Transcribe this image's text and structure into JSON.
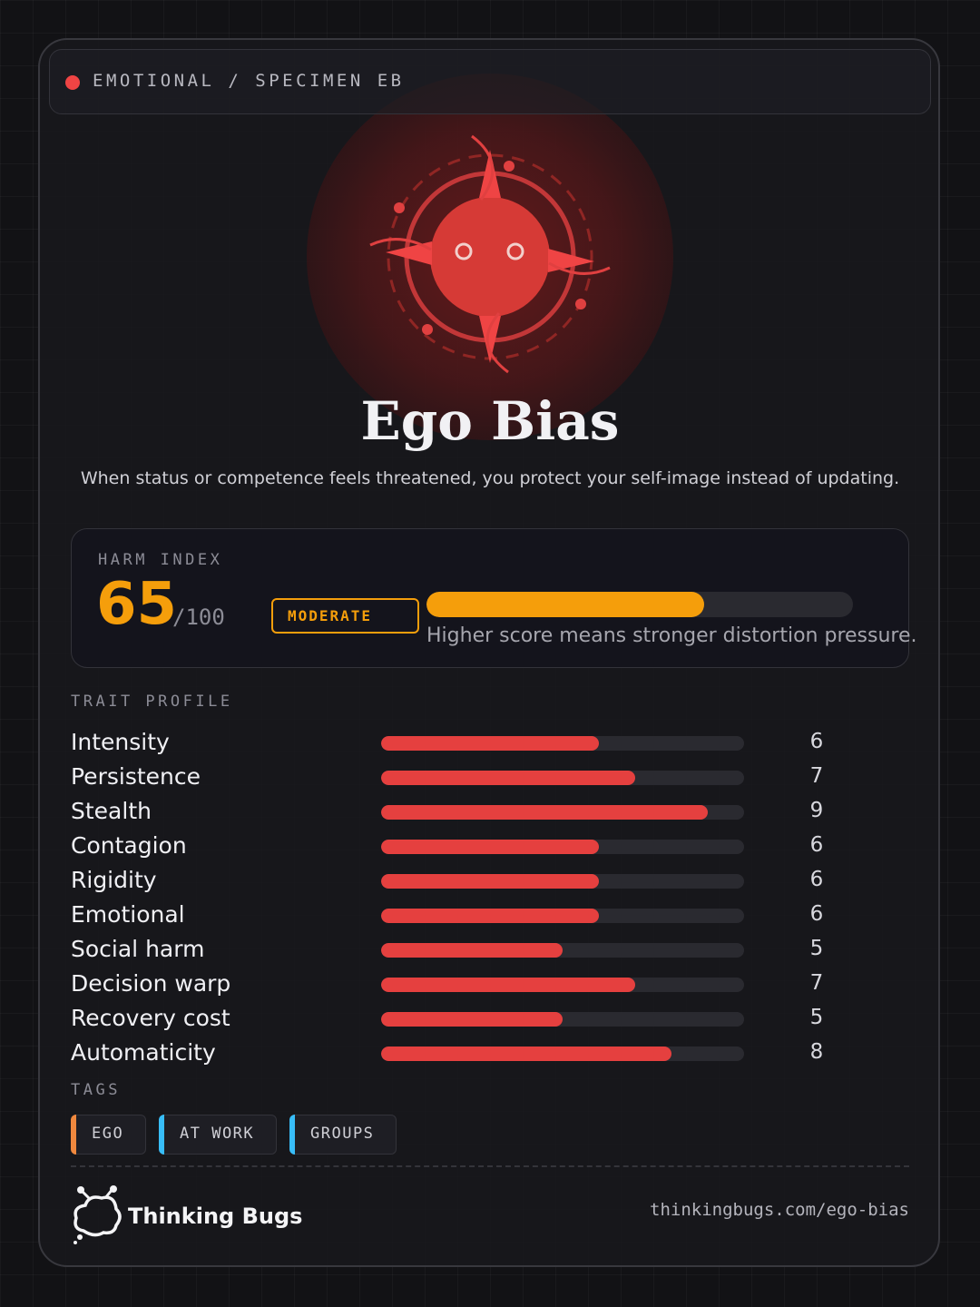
{
  "header": {
    "label": "EMOTIONAL / SPECIMEN EB"
  },
  "title": "Ego Bias",
  "description": "When status or competence feels threatened, you protect your self-image instead of updating.",
  "harm": {
    "label": "HARM INDEX",
    "score": 65,
    "max": {
      "value": 100,
      "label": "/100"
    },
    "level": "MODERATE",
    "note": "Higher score means stronger distortion pressure.",
    "color": "#f59e0b"
  },
  "traits": {
    "label": "TRAIT PROFILE",
    "xlim": [
      0,
      10
    ],
    "color": "#e5403f",
    "items": [
      {
        "name": "Intensity",
        "value": 6
      },
      {
        "name": "Persistence",
        "value": 7
      },
      {
        "name": "Stealth",
        "value": 9
      },
      {
        "name": "Contagion",
        "value": 6
      },
      {
        "name": "Rigidity",
        "value": 6
      },
      {
        "name": "Emotional",
        "value": 6
      },
      {
        "name": "Social harm",
        "value": 5
      },
      {
        "name": "Decision warp",
        "value": 7
      },
      {
        "name": "Recovery cost",
        "value": 5
      },
      {
        "name": "Automaticity",
        "value": 8
      }
    ]
  },
  "tags": {
    "label": "TAGS",
    "items": [
      {
        "text": "EGO",
        "color": "#f0883e"
      },
      {
        "text": "AT WORK",
        "color": "#38bdf8"
      },
      {
        "text": "GROUPS",
        "color": "#38bdf8"
      }
    ]
  },
  "footer": {
    "brand": "Thinking Bugs",
    "url": "thinkingbugs.com/ego-bias"
  }
}
